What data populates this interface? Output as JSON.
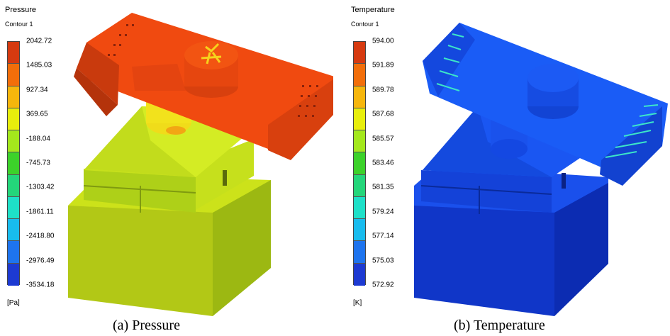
{
  "panel_a": {
    "title": "Pressure",
    "subtitle": "Contour 1",
    "ticks": [
      "2042.72",
      "1485.03",
      "927.34",
      "369.65",
      "-188.04",
      "-745.73",
      "-1303.42",
      "-1861.11",
      "-2418.80",
      "-2976.49",
      "-3534.18"
    ],
    "unit": "[Pa]",
    "caption": "(a) Pressure"
  },
  "panel_b": {
    "title": "Temperature",
    "subtitle": "Contour 1",
    "ticks": [
      "594.00",
      "591.89",
      "589.78",
      "587.68",
      "585.57",
      "583.46",
      "581.35",
      "579.24",
      "577.14",
      "575.03",
      "572.92"
    ],
    "unit": "[K]",
    "caption": "(b) Temperature"
  },
  "colors": {
    "legend_bands": [
      "#d63a10",
      "#f26e0a",
      "#f6b60c",
      "#e8ee0c",
      "#a4e81c",
      "#3cd22a",
      "#24d67a",
      "#1ee0c8",
      "#18bcee",
      "#1e74ee",
      "#1d3ad2"
    ],
    "pressure_red": "#f04a10",
    "pressure_green": "#b4e61c",
    "temperature_blue": "#1454f0",
    "highlight_cyan": "#3ce6c8"
  }
}
